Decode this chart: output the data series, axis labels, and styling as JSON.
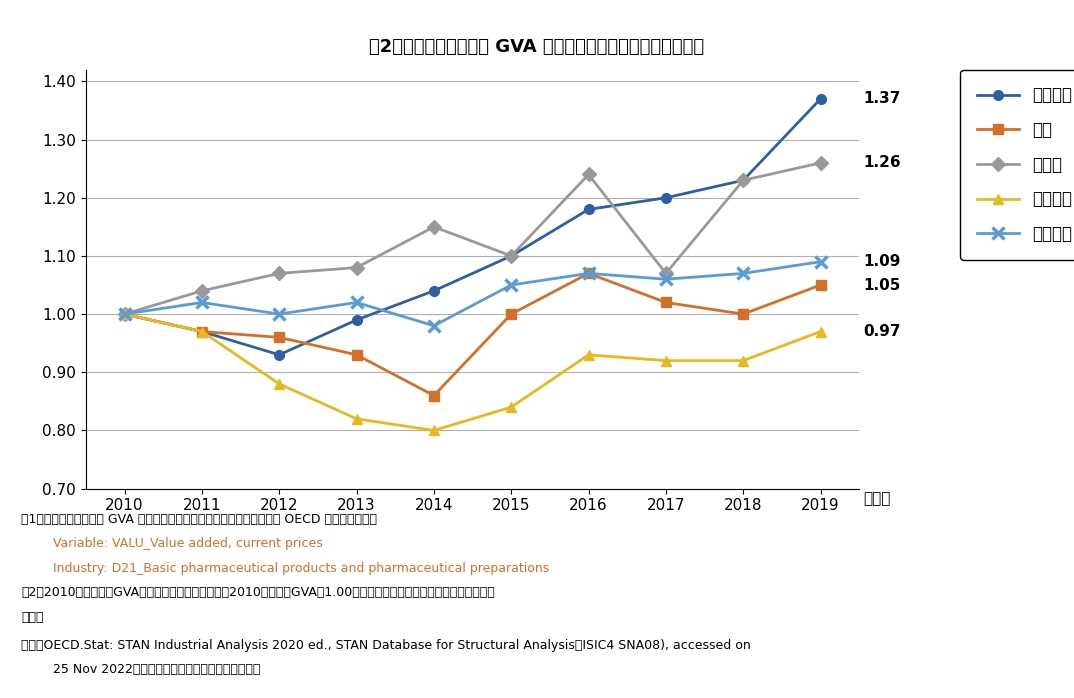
{
  "title": "図2　各国の医薬品産業 GVA 規模の指数：経年推移（名目値）",
  "years": [
    2010,
    2011,
    2012,
    2013,
    2014,
    2015,
    2016,
    2017,
    2018,
    2019
  ],
  "series_order": [
    "アメリカ",
    "日本",
    "ドイツ",
    "イギリス",
    "フランス"
  ],
  "series": {
    "アメリカ": {
      "values": [
        1.0,
        0.97,
        0.93,
        0.99,
        1.04,
        1.1,
        1.18,
        1.2,
        1.23,
        1.37
      ],
      "color": "#2e5fa3",
      "marker": "o",
      "linewidth": 2.0,
      "markersize": 7,
      "end_label": "1.37"
    },
    "日本": {
      "values": [
        1.0,
        0.97,
        0.96,
        0.93,
        0.86,
        1.0,
        1.07,
        1.02,
        1.0,
        1.05
      ],
      "color": "#d46f2a",
      "marker": "s",
      "linewidth": 2.0,
      "markersize": 7,
      "end_label": "1.05"
    },
    "ドイツ": {
      "values": [
        1.0,
        1.04,
        1.07,
        1.08,
        1.15,
        1.1,
        1.24,
        1.07,
        1.23,
        1.26
      ],
      "color": "#999999",
      "marker": "D",
      "linewidth": 2.0,
      "markersize": 7,
      "end_label": "1.26"
    },
    "イギリス": {
      "values": [
        1.0,
        0.97,
        0.88,
        0.82,
        0.8,
        0.84,
        0.93,
        0.92,
        0.92,
        0.97
      ],
      "color": "#e8b820",
      "marker": "^",
      "linewidth": 2.0,
      "markersize": 7,
      "end_label": "0.97"
    },
    "フランス": {
      "values": [
        1.0,
        1.02,
        1.0,
        1.02,
        0.98,
        1.05,
        1.07,
        1.06,
        1.07,
        1.09
      ],
      "color": "#5b9bd5",
      "marker": "x",
      "linewidth": 2.0,
      "markersize": 8,
      "end_label": "1.09"
    }
  },
  "xlim": [
    2009.5,
    2019.5
  ],
  "ylim": [
    0.7,
    1.42
  ],
  "yticks": [
    0.7,
    0.8,
    0.9,
    1.0,
    1.1,
    1.2,
    1.3,
    1.4
  ],
  "xlabel": "（年）",
  "background_color": "#ffffff",
  "grid_color": "#b0b0b0",
  "note1_line1": "注1：各国医薬品産業の GVA は、以下の区分の値を用いた。日本の値は OECD による見積値。",
  "note1_line2": "        Variable: VALU_Value added, current prices",
  "note1_line3": "        Industry: D21_Basic pharmaceutical products and pharmaceutical preparations",
  "note2_line1": "注2：2010年の各国のGVA規模をもとに指数を表示。2010年の各国GVAを1.00とした。各国現地通貨ベースにて算出して",
  "note2_line2": "いる。",
  "source_line1": "出所：OECD.Stat: STAN Industrial Analysis 2020 ed., STAN Database for Structural Analysis（ISIC4 SNA08), accessed on",
  "source_line2": "        25 Nov 2022をもとに医薬産業政策研究所にて作成"
}
